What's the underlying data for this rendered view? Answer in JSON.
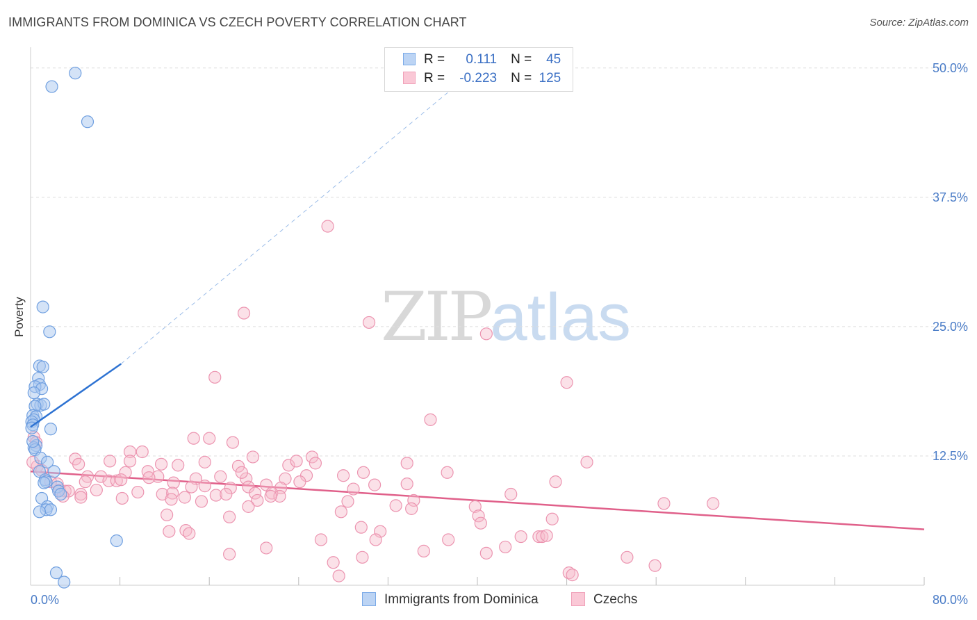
{
  "header": {
    "title": "IMMIGRANTS FROM DOMINICA VS CZECH POVERTY CORRELATION CHART",
    "source": "Source: ZipAtlas.com"
  },
  "watermark": {
    "zip": "ZIP",
    "atlas": "atlas"
  },
  "legend": {
    "r_label": "R =",
    "n_label": "N =",
    "rows": [
      {
        "r": "0.111",
        "n": "45",
        "color": "#7aaae8"
      },
      {
        "r": "-0.223",
        "n": "125",
        "color": "#f0a0b8"
      }
    ]
  },
  "bottom_legend": [
    {
      "label": "Immigrants from Dominica",
      "color": "#7aaae8"
    },
    {
      "label": "Czechs",
      "color": "#f0a0b8"
    }
  ],
  "colors": {
    "blue_fill": "#a9c8f0",
    "blue_stroke": "#6f9fe0",
    "blue_line": "#2d72d2",
    "pink_fill": "#f7bccd",
    "pink_stroke": "#ec94b0",
    "pink_line": "#e0608a",
    "grid": "#dddddd"
  },
  "chart_data": {
    "type": "scatter",
    "title": "IMMIGRANTS FROM DOMINICA VS CZECH POVERTY CORRELATION CHART",
    "xlabel": "",
    "ylabel": "Poverty",
    "xlim": [
      0,
      80
    ],
    "ylim": [
      0,
      52
    ],
    "x_tick_labels": [
      "0.0%",
      "80.0%"
    ],
    "y_ticks": [
      12.5,
      25.0,
      37.5,
      50.0
    ],
    "y_tick_labels": [
      "12.5%",
      "25.0%",
      "37.5%",
      "50.0%"
    ],
    "series": [
      {
        "name": "Immigrants from Dominica",
        "R": 0.111,
        "N": 45,
        "trend": {
          "x": [
            0,
            8.1
          ],
          "y": [
            15.3,
            21.4
          ],
          "extended_to": [
            40.0,
            50.0
          ]
        },
        "points": [
          [
            4.0,
            49.5
          ],
          [
            1.9,
            48.2
          ],
          [
            5.1,
            44.8
          ],
          [
            1.1,
            26.9
          ],
          [
            1.7,
            24.5
          ],
          [
            0.8,
            21.2
          ],
          [
            1.1,
            21.1
          ],
          [
            0.7,
            20.0
          ],
          [
            0.8,
            19.4
          ],
          [
            0.4,
            19.2
          ],
          [
            1.0,
            19.0
          ],
          [
            0.3,
            18.6
          ],
          [
            0.6,
            17.5
          ],
          [
            0.9,
            17.4
          ],
          [
            1.2,
            17.5
          ],
          [
            0.4,
            17.3
          ],
          [
            0.2,
            16.4
          ],
          [
            0.5,
            16.3
          ],
          [
            0.3,
            16.0
          ],
          [
            0.1,
            15.8
          ],
          [
            0.2,
            15.5
          ],
          [
            0.1,
            15.2
          ],
          [
            1.8,
            15.1
          ],
          [
            0.5,
            13.5
          ],
          [
            0.3,
            13.3
          ],
          [
            0.4,
            13.1
          ],
          [
            0.9,
            12.3
          ],
          [
            1.5,
            11.9
          ],
          [
            0.8,
            11.0
          ],
          [
            2.1,
            11.0
          ],
          [
            1.3,
            10.2
          ],
          [
            1.4,
            10.0
          ],
          [
            1.2,
            9.9
          ],
          [
            2.4,
            9.5
          ],
          [
            2.5,
            9.1
          ],
          [
            2.7,
            8.8
          ],
          [
            1.0,
            8.4
          ],
          [
            1.5,
            7.6
          ],
          [
            1.4,
            7.3
          ],
          [
            1.8,
            7.3
          ],
          [
            0.8,
            7.1
          ],
          [
            7.7,
            4.3
          ],
          [
            2.3,
            1.2
          ],
          [
            3.0,
            0.3
          ],
          [
            0.2,
            13.9
          ]
        ]
      },
      {
        "name": "Czechs",
        "R": -0.223,
        "N": 125,
        "trend": {
          "x": [
            0,
            80
          ],
          "y": [
            11.0,
            5.4
          ]
        },
        "points": [
          [
            26.6,
            34.7
          ],
          [
            19.1,
            26.3
          ],
          [
            30.3,
            25.4
          ],
          [
            40.8,
            24.3
          ],
          [
            16.5,
            20.1
          ],
          [
            48.0,
            19.6
          ],
          [
            35.8,
            16.0
          ],
          [
            14.6,
            14.2
          ],
          [
            16.0,
            14.2
          ],
          [
            18.1,
            13.8
          ],
          [
            0.3,
            14.3
          ],
          [
            0.5,
            13.8
          ],
          [
            8.9,
            12.9
          ],
          [
            10.0,
            12.9
          ],
          [
            19.9,
            12.4
          ],
          [
            25.2,
            12.4
          ],
          [
            4.0,
            12.2
          ],
          [
            7.1,
            12.0
          ],
          [
            8.9,
            12.0
          ],
          [
            4.3,
            11.7
          ],
          [
            11.7,
            11.7
          ],
          [
            13.2,
            11.6
          ],
          [
            15.6,
            11.9
          ],
          [
            18.6,
            11.5
          ],
          [
            23.1,
            11.6
          ],
          [
            25.5,
            11.8
          ],
          [
            33.7,
            11.8
          ],
          [
            49.8,
            11.9
          ],
          [
            0.6,
            11.5
          ],
          [
            1.0,
            11.1
          ],
          [
            5.1,
            10.5
          ],
          [
            6.3,
            10.5
          ],
          [
            8.5,
            10.9
          ],
          [
            10.5,
            11.0
          ],
          [
            11.4,
            10.5
          ],
          [
            14.8,
            10.3
          ],
          [
            17.0,
            10.5
          ],
          [
            19.3,
            10.3
          ],
          [
            22.8,
            10.3
          ],
          [
            24.7,
            10.6
          ],
          [
            28.0,
            10.6
          ],
          [
            29.8,
            10.9
          ],
          [
            37.3,
            10.9
          ],
          [
            1.8,
            10.0
          ],
          [
            2.4,
            9.8
          ],
          [
            4.9,
            10.0
          ],
          [
            7.0,
            10.1
          ],
          [
            7.7,
            10.1
          ],
          [
            8.1,
            10.2
          ],
          [
            10.6,
            10.4
          ],
          [
            12.8,
            9.9
          ],
          [
            14.4,
            9.5
          ],
          [
            15.6,
            9.6
          ],
          [
            17.9,
            9.4
          ],
          [
            19.5,
            9.5
          ],
          [
            21.1,
            9.7
          ],
          [
            22.4,
            9.4
          ],
          [
            24.1,
            10.0
          ],
          [
            28.9,
            9.3
          ],
          [
            30.8,
            9.7
          ],
          [
            33.7,
            9.8
          ],
          [
            47.0,
            10.0
          ],
          [
            2.6,
            9.2
          ],
          [
            3.1,
            9.1
          ],
          [
            3.4,
            9.1
          ],
          [
            4.5,
            8.8
          ],
          [
            5.9,
            9.2
          ],
          [
            9.6,
            9.0
          ],
          [
            11.8,
            8.8
          ],
          [
            12.7,
            8.9
          ],
          [
            13.8,
            8.5
          ],
          [
            16.6,
            8.7
          ],
          [
            17.5,
            8.8
          ],
          [
            20.1,
            8.9
          ],
          [
            21.6,
            8.9
          ],
          [
            22.3,
            8.6
          ],
          [
            2.9,
            8.6
          ],
          [
            4.5,
            8.5
          ],
          [
            8.2,
            8.4
          ],
          [
            12.6,
            8.3
          ],
          [
            15.3,
            8.1
          ],
          [
            20.3,
            8.2
          ],
          [
            28.4,
            8.1
          ],
          [
            32.7,
            7.7
          ],
          [
            34.3,
            8.2
          ],
          [
            43.0,
            8.8
          ],
          [
            56.7,
            7.9
          ],
          [
            61.1,
            7.9
          ],
          [
            19.5,
            7.6
          ],
          [
            34.1,
            7.4
          ],
          [
            39.8,
            7.6
          ],
          [
            27.8,
            7.1
          ],
          [
            40.1,
            6.7
          ],
          [
            17.8,
            6.6
          ],
          [
            46.7,
            6.4
          ],
          [
            40.3,
            6.0
          ],
          [
            29.6,
            5.6
          ],
          [
            12.4,
            5.2
          ],
          [
            13.9,
            5.3
          ],
          [
            14.2,
            5.0
          ],
          [
            31.3,
            5.2
          ],
          [
            26.0,
            4.4
          ],
          [
            30.9,
            4.4
          ],
          [
            37.4,
            4.4
          ],
          [
            43.9,
            4.7
          ],
          [
            45.5,
            4.7
          ],
          [
            45.8,
            4.7
          ],
          [
            46.2,
            4.8
          ],
          [
            21.1,
            3.6
          ],
          [
            35.2,
            3.3
          ],
          [
            42.5,
            3.7
          ],
          [
            17.8,
            3.0
          ],
          [
            40.8,
            3.1
          ],
          [
            27.1,
            2.2
          ],
          [
            29.7,
            2.7
          ],
          [
            53.4,
            2.7
          ],
          [
            55.9,
            1.9
          ],
          [
            48.2,
            1.2
          ],
          [
            48.5,
            1.0
          ],
          [
            27.6,
            0.9
          ],
          [
            0.2,
            11.9
          ],
          [
            12.2,
            6.8
          ],
          [
            23.8,
            12.0
          ],
          [
            21.5,
            8.6
          ],
          [
            18.9,
            10.9
          ]
        ]
      }
    ]
  }
}
